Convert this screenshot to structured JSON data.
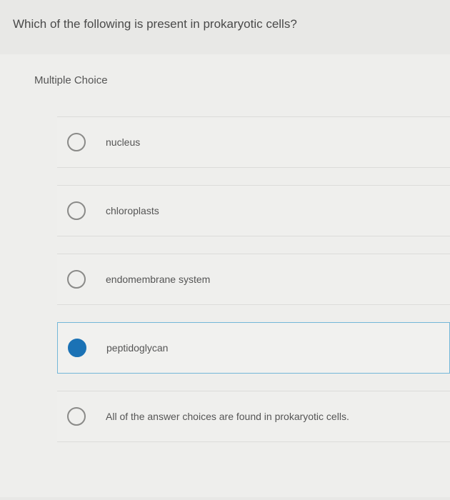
{
  "question": {
    "text": "Which of the following is present in prokaryotic cells?"
  },
  "section_label": "Multiple Choice",
  "options": [
    {
      "label": "nucleus",
      "selected": false
    },
    {
      "label": "chloroplasts",
      "selected": false
    },
    {
      "label": "endomembrane system",
      "selected": false
    },
    {
      "label": "peptidoglycan",
      "selected": true
    },
    {
      "label": "All of the answer choices are found in prokaryotic cells.",
      "selected": false
    }
  ],
  "colors": {
    "page_bg": "#e8e8e6",
    "panel_bg": "#eeeeec",
    "option_bg": "#efefed",
    "border": "#dcdcda",
    "selected_border": "#74b7d8",
    "radio_border": "#8a8a88",
    "radio_fill": "#1b72b5",
    "text": "#4a4a4a"
  }
}
